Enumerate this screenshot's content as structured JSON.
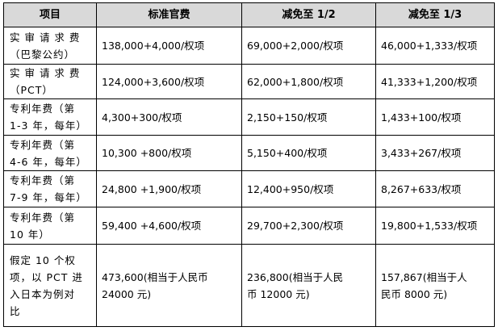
{
  "table": {
    "headers": [
      "项目",
      "标准官费",
      "减免至 1/2",
      "减免至 1/3"
    ],
    "rows": [
      [
        "实 审 请 求 费\n（巴黎公约）",
        "138,000+4,000/权项",
        "69,000+2,000/权项",
        "46,000+1,333/权项"
      ],
      [
        "实 审 请 求 费\n（PCT）",
        "124,000+3,600/权项",
        "62,000+1,800/权项",
        "41,333+1,200/权项"
      ],
      [
        "专利年费（第\n1-3 年，每年）",
        "4,300+300/权项",
        "2,150+150/权项",
        "1,433+100/权项"
      ],
      [
        "专利年费（第\n4-6 年，每年）",
        "10,300 +800/权项",
        "5,150+400/权项",
        "3,433+267/权项"
      ],
      [
        "专利年费（第\n7-9 年，每年）",
        "24,800 +1,900/权项",
        "12,400+950/权项",
        "8,267+633/权项"
      ],
      [
        "专利年费（第\n10 年）",
        "59,400 +4,600/权项",
        "29,700+2,300/权项",
        "19,800+1,533/权项"
      ],
      [
        "假定 10 个权\n项，以 PCT 进\n入日本为例对\n比",
        "473,600(相当于人民币\n24000 元)",
        "236,800(相当于人民\n币 12000 元)",
        "157,867(相当于人\n民币 8000 元)"
      ]
    ]
  }
}
